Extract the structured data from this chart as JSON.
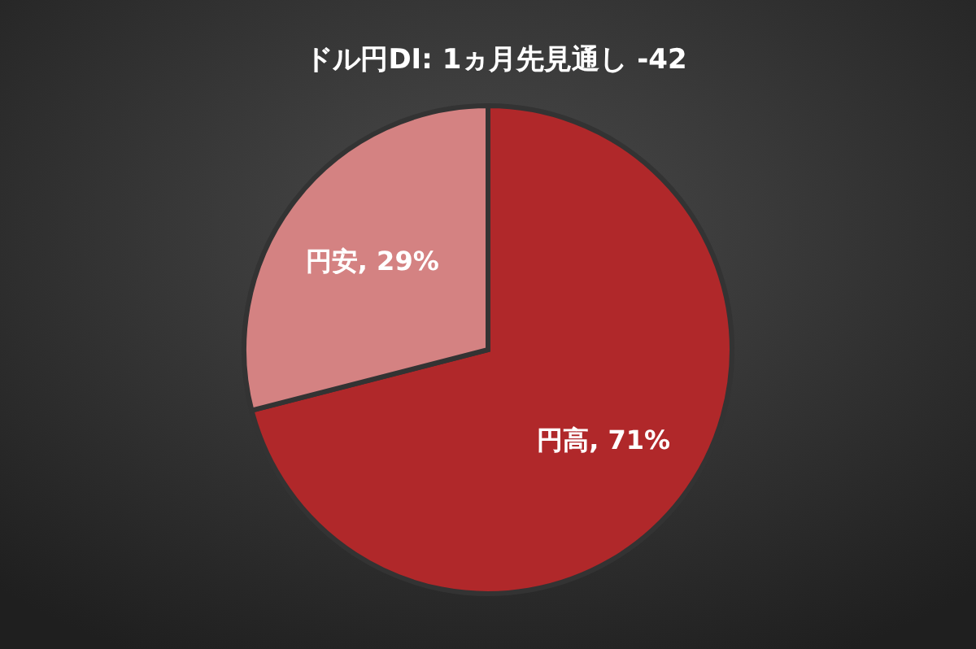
{
  "chart_data": {
    "type": "pie",
    "title": "ドル円DI: 1ヵ月先見通し -42",
    "categories": [
      "円高",
      "円安"
    ],
    "values": [
      71,
      29
    ],
    "colors": [
      "#b0282a",
      "#d48282"
    ],
    "value_labels": [
      ", 71%",
      ", 29%"
    ]
  }
}
